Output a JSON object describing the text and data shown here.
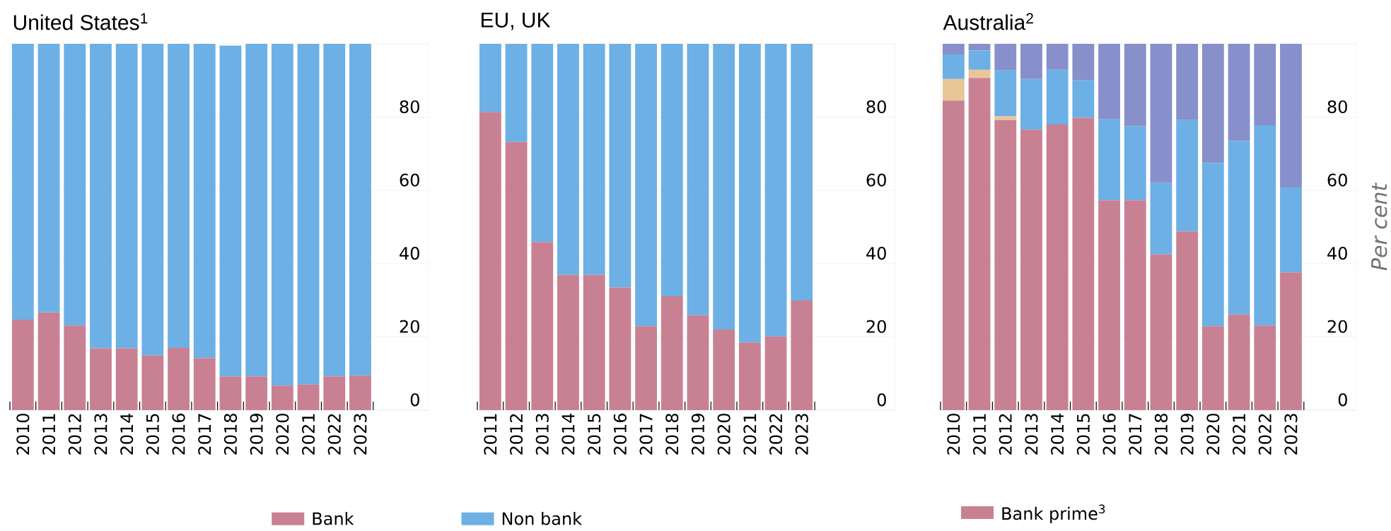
{
  "chart_data": [
    {
      "type": "bar",
      "title": "United States$^{1}$",
      "stacked": true,
      "grid": "y",
      "legend": "bottom",
      "ylim": [
        0,
        100
      ],
      "yticks": [
        0,
        20,
        40,
        60,
        80
      ],
      "categories": [
        "2010",
        "2011",
        "2012",
        "2013",
        "2014",
        "2015",
        "2016",
        "2017",
        "2018",
        "2019",
        "2020",
        "2021",
        "2022",
        "2023"
      ],
      "series": [
        {
          "name": "Bank",
          "color": "#c88193",
          "values": [
            24.7,
            26.7,
            23.1,
            16.9,
            16.9,
            14.9,
            17.0,
            14.2,
            9.2,
            9.2,
            6.7,
            7.0,
            9.2,
            9.4
          ]
        },
        {
          "name": "Non bank",
          "color": "#6cb0e5",
          "values": [
            75.3,
            73.3,
            76.9,
            83.1,
            83.1,
            85.1,
            83.0,
            85.8,
            90.3,
            90.8,
            93.3,
            93.0,
            90.8,
            90.6
          ]
        }
      ]
    },
    {
      "type": "bar",
      "title": "EU, UK",
      "stacked": true,
      "grid": "y",
      "ylim": [
        0,
        100
      ],
      "yticks": [
        0,
        20,
        40,
        60,
        80
      ],
      "categories": [
        "2011",
        "2012",
        "2013",
        "2014",
        "2015",
        "2016",
        "2017",
        "2018",
        "2019",
        "2020",
        "2021",
        "2022",
        "2023"
      ],
      "series": [
        {
          "color": "#c88193",
          "values": [
            81.4,
            73.2,
            45.9,
            36.9,
            36.9,
            33.5,
            22.9,
            31.1,
            25.9,
            22.0,
            18.5,
            20.1,
            29.9
          ]
        },
        {
          "color": "#6cb0e5",
          "values": [
            18.6,
            26.8,
            54.1,
            63.1,
            63.1,
            66.5,
            77.1,
            68.9,
            74.1,
            78.0,
            81.5,
            79.9,
            70.1
          ]
        }
      ]
    },
    {
      "type": "bar",
      "title": "Australia$^{2}$",
      "ylabel": "Per cent",
      "stacked": true,
      "grid": "y",
      "legend": "bottom",
      "ylim": [
        0,
        100
      ],
      "yticks": [
        0,
        20,
        40,
        60,
        80
      ],
      "categories": [
        "2010",
        "2011",
        "2012",
        "2013",
        "2014",
        "2015",
        "2016",
        "2017",
        "2018",
        "2019",
        "2020",
        "2021",
        "2022",
        "2023"
      ],
      "series": [
        {
          "name": "Bank prime$^{3}$",
          "color": "#c88193",
          "values": [
            84.5,
            90.7,
            79.2,
            76.6,
            78.0,
            79.8,
            57.3,
            57.3,
            42.5,
            48.8,
            22.9,
            26.1,
            23.1,
            37.6
          ]
        },
        {
          "color": "#e8c697",
          "values": [
            5.9,
            2.2,
            1.0,
            0,
            0,
            0,
            0,
            0,
            0,
            0,
            0,
            0,
            0,
            0
          ]
        },
        {
          "color": "#6cb0e5",
          "values": [
            6.7,
            5.3,
            12.5,
            13.8,
            14.9,
            10.2,
            22.1,
            20.2,
            19.5,
            30.4,
            44.6,
            47.4,
            54.7,
            23.2
          ]
        },
        {
          "color": "#8790cb",
          "values": [
            2.9,
            1.8,
            7.3,
            9.6,
            7.1,
            10.0,
            20.6,
            22.5,
            38.0,
            20.8,
            32.5,
            26.5,
            22.2,
            39.2
          ]
        }
      ]
    }
  ]
}
